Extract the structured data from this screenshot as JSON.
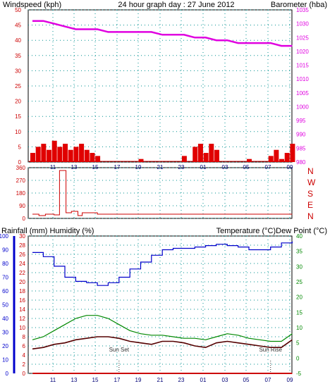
{
  "colors": {
    "wind_gust": "#e00000",
    "wind_avg": "#0000cc",
    "barometer": "#e000e0",
    "direction": "#cc0000",
    "humidity": "#0000cc",
    "temperature": "#008800",
    "dewpoint": "#550000",
    "rainfall": "#cc0000",
    "grid": "#009090",
    "frame": "#000000",
    "title": "#0000cc",
    "left_label": "#cc0000",
    "bottom_tick": "#000077"
  },
  "chart_data": [
    {
      "id": "wind_barometer",
      "type": "line",
      "title": "24 hour graph day : 27 June 2012",
      "left_axis_label": "Windspeed (kph)",
      "right_axis_label": "Barometer (hba)",
      "x_ticks": [
        "11",
        "13",
        "15",
        "17",
        "19",
        "21",
        "23",
        "01",
        "03",
        "05",
        "07",
        "09"
      ],
      "y_left_ticks": [
        "0",
        "5",
        "10",
        "15",
        "20",
        "25",
        "30",
        "35",
        "40",
        "45",
        "50"
      ],
      "y_left_range": [
        0,
        50
      ],
      "y_right_ticks": [
        "980",
        "985",
        "990",
        "995",
        "1000",
        "1005",
        "1010",
        "1015",
        "1020",
        "1025",
        "1030",
        "1035"
      ],
      "y_right_range": [
        980,
        1035
      ],
      "grid": true,
      "series": [
        {
          "key": "barometer",
          "axis": "right",
          "x": [
            0,
            1,
            2,
            3,
            4,
            5,
            6,
            7,
            8,
            9,
            10,
            11,
            12,
            13,
            14,
            15,
            16,
            17,
            18,
            19,
            20,
            21,
            22,
            23,
            24
          ],
          "values": [
            1031,
            1031,
            1030,
            1029,
            1028,
            1028,
            1028,
            1027,
            1027,
            1027,
            1027,
            1027,
            1026,
            1026,
            1026,
            1025,
            1025,
            1024,
            1024,
            1023,
            1023,
            1023,
            1023,
            1022,
            1022
          ]
        },
        {
          "key": "wind_gust",
          "axis": "left",
          "x": [
            0,
            0.5,
            1,
            1.5,
            2,
            2.5,
            3,
            3.5,
            4,
            4.5,
            5,
            5.5,
            6,
            8,
            10,
            12,
            14,
            15,
            15.5,
            16,
            16.5,
            17,
            18,
            20,
            21,
            22,
            22.5,
            23,
            23.5,
            24
          ],
          "values": [
            3,
            5,
            6,
            4,
            7,
            5,
            6,
            4,
            5,
            6,
            4,
            3,
            2,
            0,
            1,
            0,
            2,
            5,
            6,
            3,
            6,
            4,
            0,
            1,
            0,
            2,
            4,
            1,
            3,
            6
          ]
        }
      ]
    },
    {
      "id": "wind_direction",
      "type": "line",
      "y_left_ticks": [
        "0",
        "90",
        "180",
        "270",
        "360"
      ],
      "y_left_range": [
        0,
        360
      ],
      "direction_labels": [
        "N",
        "W",
        "S",
        "E",
        "N"
      ],
      "grid": true,
      "series": [
        {
          "key": "direction",
          "x": [
            0,
            0.6,
            1.2,
            2.0,
            2.5,
            3.0,
            3.1,
            3.6,
            4.2,
            4.6,
            6,
            12,
            18,
            24
          ],
          "values": [
            30,
            20,
            30,
            25,
            340,
            340,
            40,
            50,
            20,
            40,
            30,
            30,
            30,
            30
          ]
        }
      ]
    },
    {
      "id": "temp_humidity",
      "type": "line",
      "left_axis_label": "Rainfall (mm)  Humidity (%)",
      "right_axis_label": "Temperature (°C)Dew Point (°C)",
      "x_ticks": [
        "11",
        "13",
        "15",
        "17",
        "19",
        "21",
        "23",
        "01",
        "03",
        "05",
        "07",
        "09"
      ],
      "humidity_ticks": [
        "0",
        "10",
        "20",
        "30",
        "40",
        "50",
        "60",
        "70",
        "80",
        "90",
        "100"
      ],
      "humidity_range": [
        0,
        100
      ],
      "rainfall_ticks": [
        "0",
        "2",
        "4",
        "6",
        "8",
        "10",
        "12",
        "14",
        "16",
        "18",
        "20",
        "22",
        "24",
        "26",
        "28",
        "30"
      ],
      "rainfall_range": [
        0,
        30
      ],
      "temp_ticks": [
        "-5",
        "0",
        "5",
        "10",
        "15",
        "20",
        "25",
        "30",
        "35",
        "40"
      ],
      "temp_range": [
        -5,
        40
      ],
      "grid": true,
      "annotations": [
        {
          "text": "Sun Set",
          "x": 8.0
        },
        {
          "text": "Sun Rise",
          "x": 22.0
        }
      ],
      "series": [
        {
          "key": "humidity",
          "axis": "humidity",
          "x": [
            0,
            1,
            2,
            3,
            4,
            5,
            6,
            7,
            8,
            9,
            10,
            11,
            12,
            13,
            14,
            15,
            16,
            17,
            18,
            19,
            20,
            21,
            22,
            23,
            24
          ],
          "values": [
            88,
            85,
            78,
            70,
            67,
            66,
            64,
            66,
            70,
            76,
            81,
            86,
            90,
            91,
            91,
            92,
            93,
            94,
            93,
            92,
            90,
            90,
            92,
            95,
            96
          ]
        },
        {
          "key": "temperature",
          "axis": "temp",
          "x": [
            0,
            1,
            2,
            3,
            4,
            5,
            6,
            7,
            8,
            9,
            10,
            11,
            12,
            13,
            14,
            15,
            16,
            17,
            18,
            19,
            20,
            21,
            22,
            23,
            24
          ],
          "values": [
            6,
            7,
            9,
            11,
            13,
            14,
            14,
            13,
            11,
            9,
            8,
            7.5,
            7.5,
            7,
            6.5,
            6.5,
            6,
            7,
            8,
            7.5,
            6.5,
            6,
            5.5,
            5.5,
            8
          ]
        },
        {
          "key": "dewpoint",
          "axis": "temp",
          "x": [
            0,
            1,
            2,
            3,
            4,
            5,
            6,
            7,
            8,
            9,
            10,
            11,
            12,
            13,
            14,
            15,
            16,
            17,
            18,
            19,
            20,
            21,
            22,
            23,
            24
          ],
          "values": [
            3,
            3.5,
            4.5,
            5,
            6,
            6.5,
            7,
            7,
            6.5,
            5.5,
            5,
            4.5,
            5.5,
            5.5,
            5,
            4,
            3.5,
            5,
            5.5,
            5,
            4.5,
            4,
            3.5,
            3.5,
            6
          ]
        },
        {
          "key": "rainfall",
          "axis": "rainfall",
          "x": [
            0,
            24
          ],
          "values": [
            0,
            0
          ]
        }
      ]
    }
  ]
}
